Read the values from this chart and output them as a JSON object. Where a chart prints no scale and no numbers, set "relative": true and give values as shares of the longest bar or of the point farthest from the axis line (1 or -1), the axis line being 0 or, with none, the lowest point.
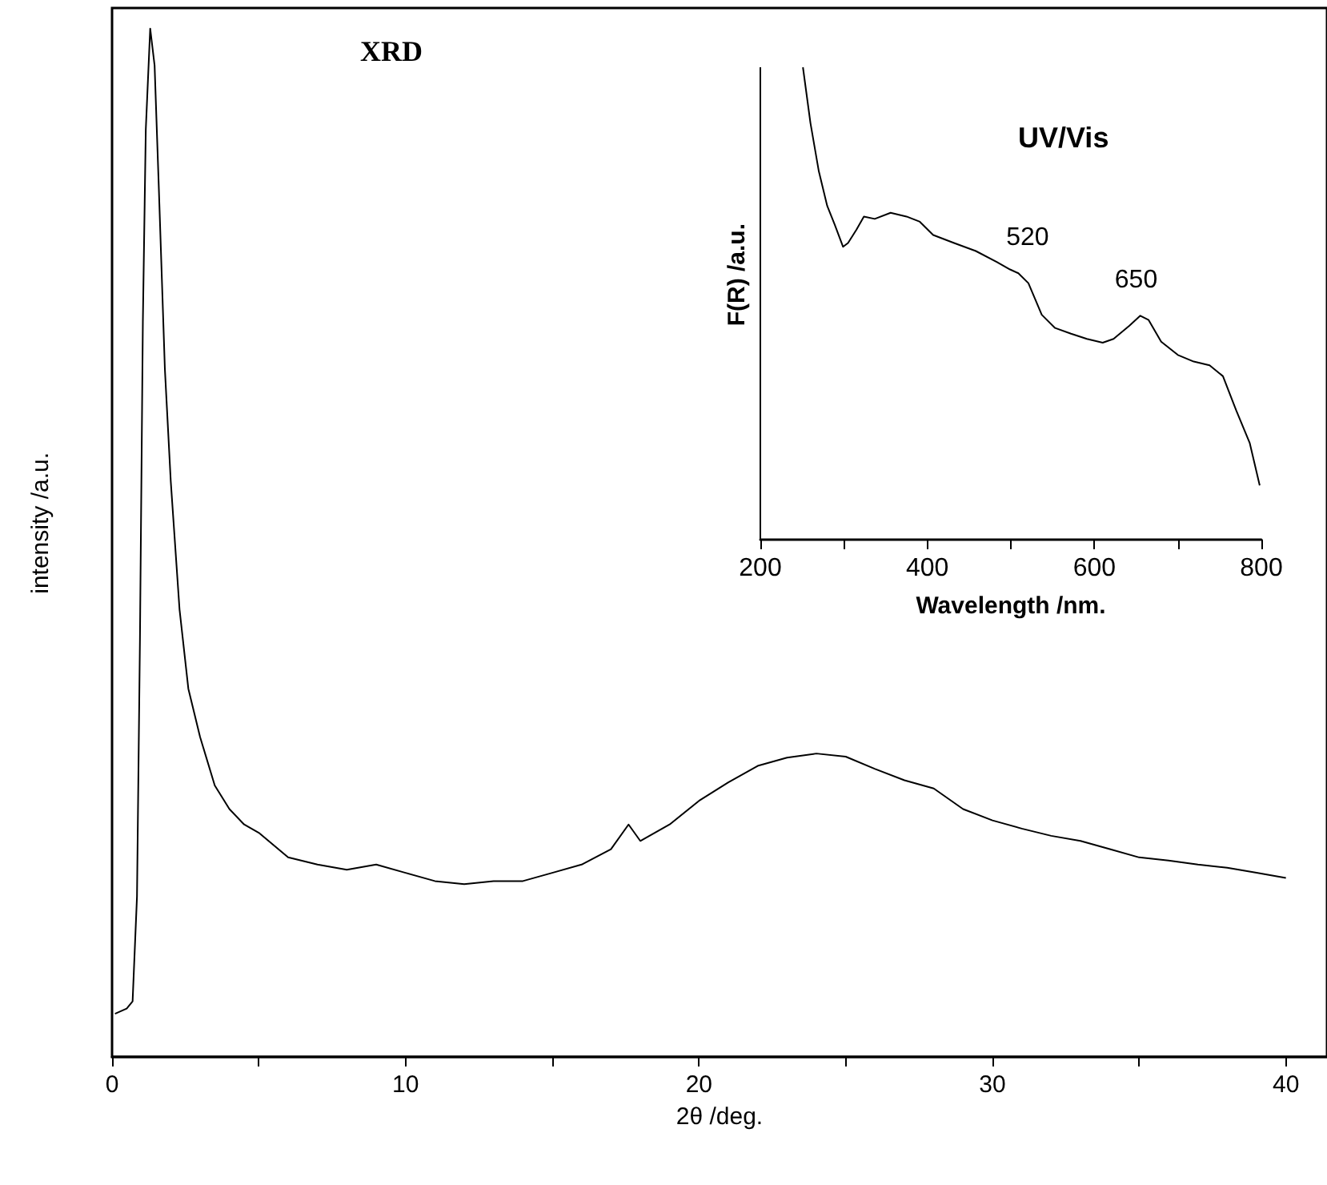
{
  "chart_data": [
    {
      "type": "line",
      "title": "XRD",
      "xlabel": "2θ /deg.",
      "ylabel": "intensity /a.u.",
      "relative": true,
      "xlim": [
        0,
        41.4
      ],
      "xticks": [
        0,
        {
          "value": 5,
          "label": null
        },
        10,
        {
          "value": 15,
          "label": null
        },
        20,
        {
          "value": 25,
          "label": null
        },
        30,
        {
          "value": 35,
          "label": null
        },
        40
      ],
      "series": [
        {
          "color": "#000000",
          "x": [
            0.1,
            0.5,
            0.7,
            0.85,
            0.95,
            1.05,
            1.15,
            1.3,
            1.45,
            1.6,
            1.8,
            2.0,
            2.3,
            2.6,
            3.0,
            3.5,
            4.0,
            4.5,
            5,
            6,
            7,
            8,
            9,
            10,
            11,
            12,
            13,
            14,
            15,
            16,
            17,
            17.6,
            18,
            19,
            20,
            21,
            22,
            23,
            24,
            25,
            26,
            27,
            28,
            29,
            30,
            31,
            32,
            33,
            34,
            35,
            36,
            37,
            38,
            39,
            40
          ],
          "values": [
            0.042,
            0.047,
            0.054,
            0.156,
            0.404,
            0.715,
            0.902,
            1,
            0.964,
            0.84,
            0.669,
            0.56,
            0.435,
            0.358,
            0.311,
            0.264,
            0.241,
            0.226,
            0.218,
            0.194,
            0.187,
            0.182,
            0.187,
            0.179,
            0.171,
            0.168,
            0.171,
            0.171,
            0.179,
            0.187,
            0.202,
            0.226,
            0.21,
            0.226,
            0.249,
            0.267,
            0.283,
            0.291,
            0.295,
            0.292,
            0.28,
            0.269,
            0.261,
            0.241,
            0.23,
            0.222,
            0.215,
            0.21,
            0.202,
            0.194,
            0.191,
            0.187,
            0.184,
            0.179,
            0.174
          ]
        }
      ]
    },
    {
      "type": "line",
      "title": "UV/Vis",
      "xlabel": "Wavelength /nm.",
      "ylabel": "F(R) /a.u.",
      "relative": true,
      "xlim": [
        200,
        800
      ],
      "xticks": [
        200,
        {
          "value": 300,
          "label": null
        },
        400,
        {
          "value": 500,
          "label": null
        },
        600,
        {
          "value": 700,
          "label": null
        },
        800
      ],
      "annotations": [
        {
          "text": "520",
          "x": 520,
          "y": 0.564
        },
        {
          "text": "650",
          "x": 650,
          "y": 0.474
        }
      ],
      "series": [
        {
          "color": "#000000",
          "x": [
            251,
            260,
            270,
            280,
            289,
            299,
            305,
            315,
            324,
            337,
            356,
            375,
            391,
            407,
            432,
            458,
            483,
            499,
            509,
            521,
            537,
            553,
            572,
            591,
            610,
            623,
            642,
            655,
            665,
            680,
            700,
            719,
            738,
            754,
            770,
            786,
            798
          ],
          "values": [
            1,
            0.882,
            0.78,
            0.707,
            0.667,
            0.62,
            0.628,
            0.656,
            0.684,
            0.679,
            0.692,
            0.684,
            0.673,
            0.645,
            0.628,
            0.611,
            0.588,
            0.572,
            0.564,
            0.543,
            0.476,
            0.448,
            0.436,
            0.425,
            0.417,
            0.425,
            0.453,
            0.474,
            0.465,
            0.419,
            0.391,
            0.377,
            0.369,
            0.346,
            0.273,
            0.205,
            0.115
          ]
        }
      ]
    }
  ]
}
